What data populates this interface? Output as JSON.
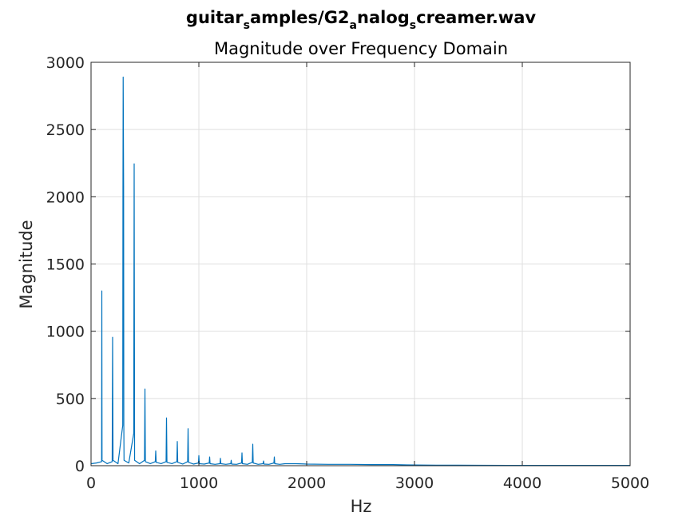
{
  "chart_data": {
    "type": "line",
    "title_parts": [
      {
        "text": "guitar",
        "sub": false
      },
      {
        "text": "s",
        "sub": true
      },
      {
        "text": "amples/G2",
        "sub": false
      },
      {
        "text": "a",
        "sub": true
      },
      {
        "text": "nalog",
        "sub": false
      },
      {
        "text": "s",
        "sub": true
      },
      {
        "text": "creamer.wav",
        "sub": false
      }
    ],
    "subtitle": "Magnitude over Frequency Domain",
    "xlabel": "Hz",
    "ylabel": "Magnitude",
    "xlim": [
      0,
      5000
    ],
    "ylim": [
      0,
      3000
    ],
    "xticks": [
      0,
      1000,
      2000,
      3000,
      4000,
      5000
    ],
    "xtick_labels": [
      "0",
      "1000",
      "2000",
      "3000",
      "4000",
      "5000"
    ],
    "yticks": [
      0,
      500,
      1000,
      1500,
      2000,
      2500,
      3000
    ],
    "ytick_labels": [
      "0",
      "500",
      "1000",
      "1500",
      "2000",
      "2500",
      "3000"
    ],
    "grid": true,
    "series_color": "#0072BD",
    "series": [
      {
        "x": [
          0,
          50,
          98,
          100,
          102,
          150,
          196,
          200,
          204,
          250,
          294,
          296,
          298,
          300,
          302,
          304,
          306,
          350,
          396,
          400,
          404,
          450,
          496,
          500,
          504,
          550,
          596,
          600,
          604,
          650,
          696,
          700,
          704,
          750,
          796,
          800,
          804,
          850,
          896,
          900,
          904,
          950,
          996,
          1000,
          1004,
          1050,
          1096,
          1100,
          1104,
          1150,
          1196,
          1200,
          1204,
          1250,
          1296,
          1300,
          1304,
          1350,
          1396,
          1400,
          1404,
          1450,
          1496,
          1500,
          1504,
          1550,
          1596,
          1600,
          1604,
          1650,
          1696,
          1700,
          1704,
          1750,
          1800,
          1900,
          2000,
          2200,
          2400,
          2600,
          2800,
          3000,
          3200,
          3400,
          3600,
          4000,
          4500,
          5000
        ],
        "y": [
          15,
          20,
          30,
          1300,
          40,
          15,
          30,
          955,
          40,
          15,
          300,
          2080,
          2890,
          2490,
          2080,
          300,
          40,
          20,
          240,
          2245,
          40,
          15,
          40,
          570,
          30,
          15,
          30,
          110,
          25,
          15,
          30,
          355,
          25,
          15,
          30,
          180,
          25,
          12,
          30,
          275,
          25,
          12,
          20,
          75,
          15,
          12,
          20,
          65,
          15,
          10,
          15,
          55,
          15,
          10,
          15,
          40,
          12,
          10,
          20,
          95,
          15,
          10,
          25,
          160,
          20,
          10,
          15,
          35,
          12,
          10,
          20,
          65,
          15,
          10,
          15,
          15,
          12,
          10,
          10,
          8,
          8,
          5,
          4,
          4,
          3,
          2,
          2,
          2
        ]
      }
    ]
  }
}
